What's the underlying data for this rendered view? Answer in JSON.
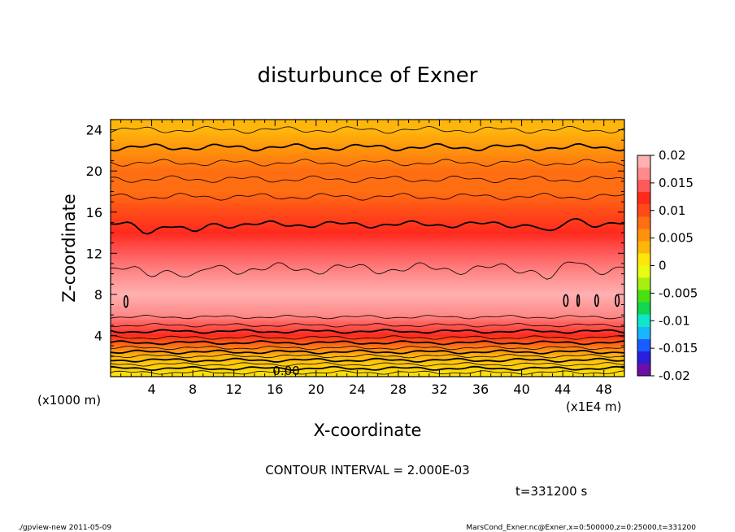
{
  "chart_data": {
    "type": "heatmap",
    "title": "disturbunce of Exner",
    "xlabel": "X-coordinate",
    "ylabel": "Z-coordinate",
    "x_unit_label": "(x1000 m)",
    "x_scale_label": "(x1E4 m)",
    "xlim": [
      0,
      50
    ],
    "ylim": [
      0,
      25
    ],
    "x_ticks": [
      4,
      8,
      12,
      16,
      20,
      24,
      28,
      32,
      36,
      40,
      44,
      48
    ],
    "y_ticks": [
      4,
      8,
      12,
      16,
      20,
      24
    ],
    "contour_interval_text": "CONTOUR INTERVAL = 2.000E-03",
    "time_text": "t=331200 s",
    "zero_label": "0.00",
    "colorbar": {
      "min": -0.02,
      "max": 0.02,
      "ticks": [
        "0.02",
        "0.015",
        "0.01",
        "0.005",
        "0",
        "-0.005",
        "-0.01",
        "-0.015",
        "-0.02"
      ],
      "colors": [
        "#6a0fa8",
        "#2a1fd8",
        "#1a5cff",
        "#19b6ff",
        "#10e6c8",
        "#10d650",
        "#48e010",
        "#a6ef10",
        "#e8fb12",
        "#ffe60a",
        "#ffb60c",
        "#ff920c",
        "#ff6e12",
        "#ff4a18",
        "#ff2a1e",
        "#ff5a5a",
        "#ff8a8a",
        "#ffb0b0"
      ]
    },
    "vertical_profile": [
      {
        "z": 0,
        "value": 0.0005
      },
      {
        "z": 2,
        "value": 0.004
      },
      {
        "z": 4,
        "value": 0.012
      },
      {
        "z": 6,
        "value": 0.0175
      },
      {
        "z": 8,
        "value": 0.0185
      },
      {
        "z": 10,
        "value": 0.017
      },
      {
        "z": 12,
        "value": 0.0145
      },
      {
        "z": 14,
        "value": 0.012
      },
      {
        "z": 16,
        "value": 0.0098
      },
      {
        "z": 18,
        "value": 0.0085
      },
      {
        "z": 20,
        "value": 0.007
      },
      {
        "z": 22,
        "value": 0.0055
      },
      {
        "z": 24,
        "value": 0.004
      },
      {
        "z": 25,
        "value": 0.0033
      }
    ],
    "contour_levels_z": [
      0.4,
      0.8,
      1.2,
      1.6,
      2.0,
      2.4,
      2.8,
      3.3,
      3.8,
      4.4,
      5.0,
      5.8,
      10.5,
      14.8,
      17.5,
      19.2,
      20.8,
      22.3,
      24.0
    ],
    "bold_levels_z": [
      0.8,
      1.6,
      2.4,
      3.3,
      4.4,
      14.8,
      22.3
    ]
  },
  "footer": {
    "left": "./gpview-new   2011-05-09",
    "right": "MarsCond_Exner.nc@Exner,x=0:500000,z=0:25000,t=331200"
  }
}
